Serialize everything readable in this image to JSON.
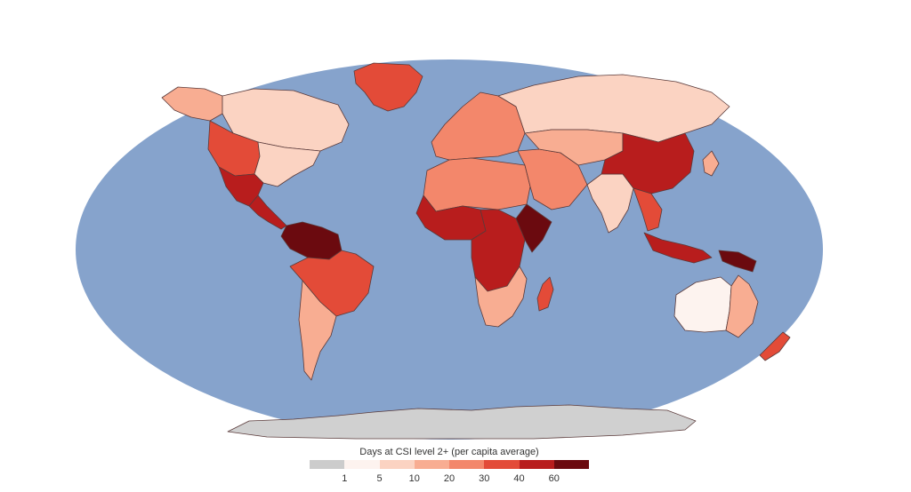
{
  "map": {
    "ocean_color": "#86a3cc",
    "antarctica_color": "#d0d0d0",
    "border_color": "#5a3a3a",
    "no_data_color": "#cccccc"
  },
  "legend": {
    "title": "Days at CSI level 2+ (per capita average)",
    "colors": [
      "#cccccc",
      "#fdf3ef",
      "#fbd3c2",
      "#f8ad92",
      "#f3876b",
      "#e34b38",
      "#b81d1d",
      "#6b0a0f"
    ],
    "ticks": [
      "1",
      "5",
      "10",
      "20",
      "30",
      "40",
      "60"
    ]
  },
  "regions": [
    {
      "id": "greenland",
      "level": 5
    },
    {
      "id": "alaska",
      "level": 3
    },
    {
      "id": "canada",
      "level": 2
    },
    {
      "id": "usa-west",
      "level": 5
    },
    {
      "id": "usa-east",
      "level": 2
    },
    {
      "id": "mexico",
      "level": 6
    },
    {
      "id": "central-america",
      "level": 6
    },
    {
      "id": "south-america-north",
      "level": 7
    },
    {
      "id": "brazil",
      "level": 5
    },
    {
      "id": "south-america-south",
      "level": 3
    },
    {
      "id": "europe",
      "level": 4
    },
    {
      "id": "russia",
      "level": 2
    },
    {
      "id": "north-africa",
      "level": 4
    },
    {
      "id": "west-africa",
      "level": 6
    },
    {
      "id": "central-africa",
      "level": 6
    },
    {
      "id": "east-africa",
      "level": 7
    },
    {
      "id": "southern-africa",
      "level": 3
    },
    {
      "id": "madagascar",
      "level": 5
    },
    {
      "id": "middle-east",
      "level": 4
    },
    {
      "id": "central-asia",
      "level": 3
    },
    {
      "id": "india",
      "level": 2
    },
    {
      "id": "china",
      "level": 6
    },
    {
      "id": "southeast-asia",
      "level": 5
    },
    {
      "id": "indonesia",
      "level": 6
    },
    {
      "id": "new-guinea",
      "level": 7
    },
    {
      "id": "australia-west",
      "level": 1
    },
    {
      "id": "australia-east",
      "level": 3
    },
    {
      "id": "new-zealand",
      "level": 5
    },
    {
      "id": "japan",
      "level": 3
    },
    {
      "id": "antarctica",
      "level": 0
    }
  ]
}
